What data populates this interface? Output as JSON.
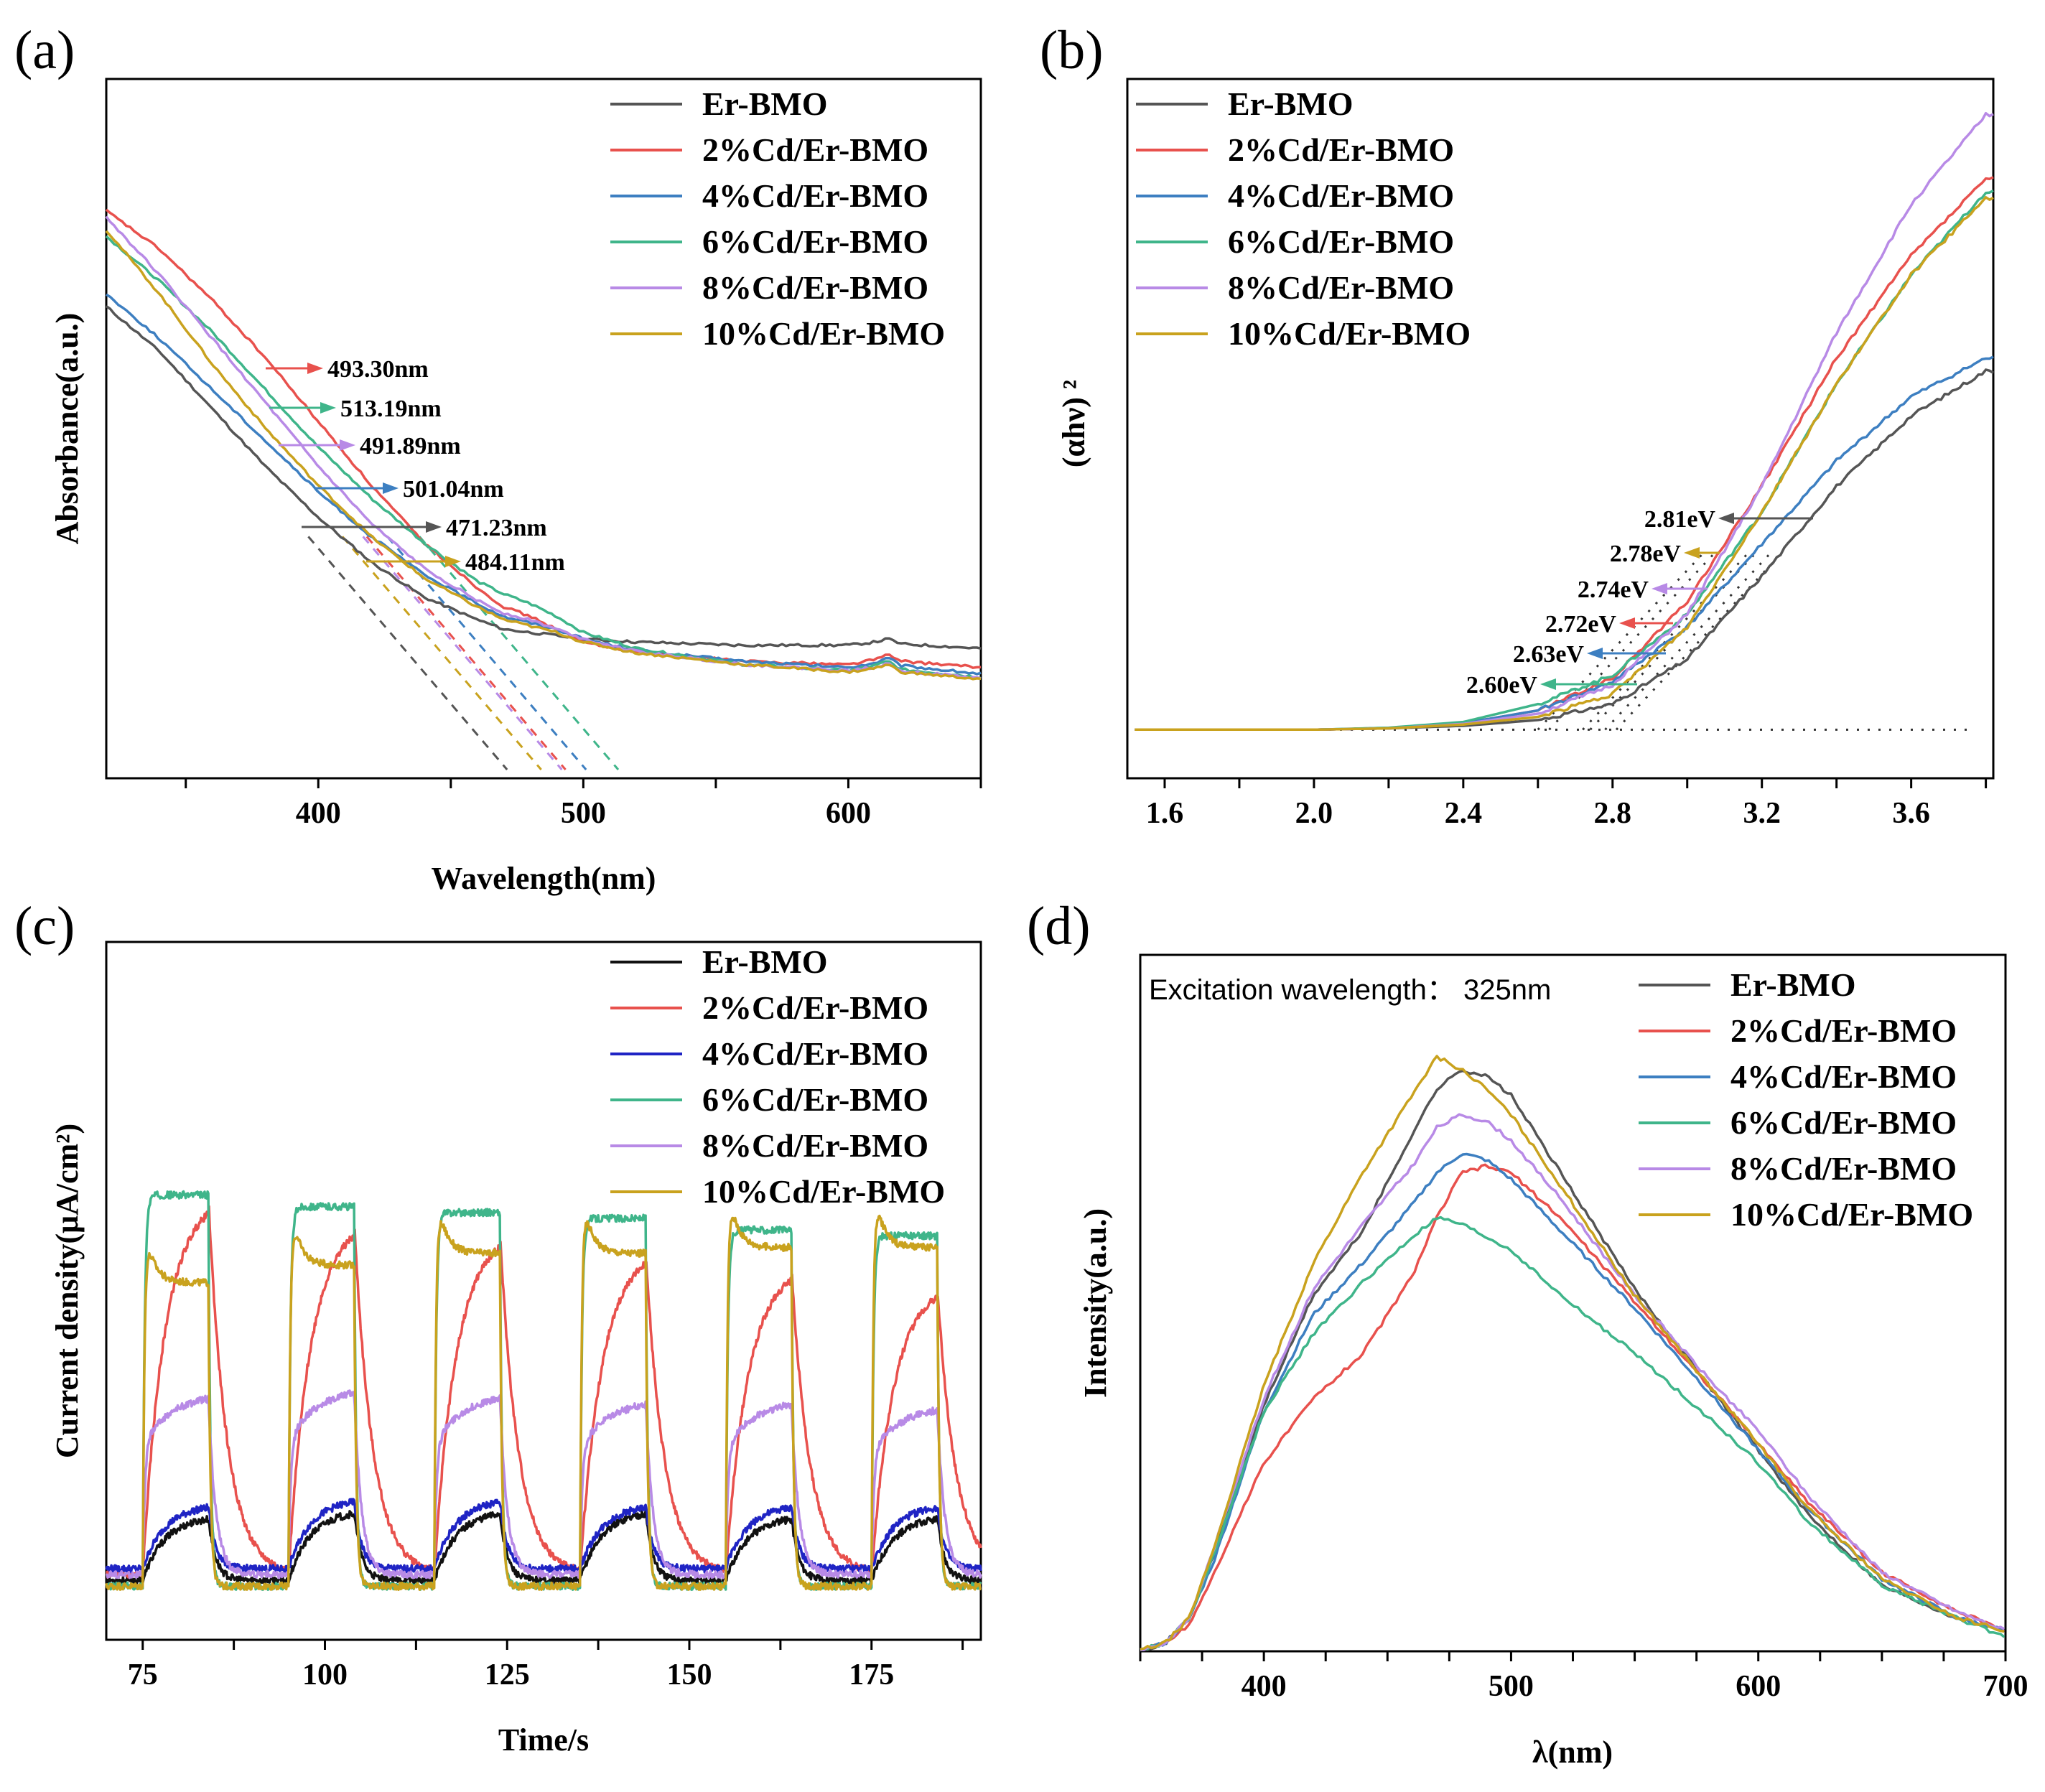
{
  "series_names": [
    "Er-BMO",
    "2%Cd/Er-BMO",
    "4%Cd/Er-BMO",
    "6%Cd/Er-BMO",
    "8%Cd/Er-BMO",
    "10%Cd/Er-BMO"
  ],
  "colors": {
    "Er-BMO_a": "#555555",
    "Er-BMO_c": "#111111",
    "2%Cd/Er-BMO": "#e8514d",
    "4%Cd/Er-BMO": "#3d7fc1",
    "4%Cd/Er-BMO_c": "#1f24c4",
    "6%Cd/Er-BMO": "#3fb58a",
    "8%Cd/Er-BMO": "#b88ae6",
    "10%Cd/Er-BMO": "#c9a21e"
  },
  "chart_data": [
    {
      "panel": "(a)",
      "type": "line",
      "xlabel": "Wavelength(nm)",
      "ylabel": "Absorbance(a.u.)",
      "xlim": [
        320,
        650
      ],
      "ylim": [
        0,
        1
      ],
      "xticks": [
        "400",
        "500",
        "600"
      ],
      "x": [
        320,
        340,
        360,
        380,
        400,
        420,
        440,
        460,
        470,
        480,
        490,
        500,
        520,
        560,
        600,
        610,
        615,
        620,
        650
      ],
      "series": [
        {
          "name": "Er-BMO",
          "values": [
            0.7,
            0.63,
            0.54,
            0.45,
            0.37,
            0.3,
            0.245,
            0.21,
            0.195,
            0.19,
            0.185,
            0.18,
            0.175,
            0.17,
            0.17,
            0.175,
            0.18,
            0.172,
            0.165
          ]
        },
        {
          "name": "2%Cd/Er-BMO",
          "values": [
            0.85,
            0.79,
            0.71,
            0.62,
            0.52,
            0.42,
            0.33,
            0.26,
            0.23,
            0.215,
            0.195,
            0.175,
            0.16,
            0.145,
            0.14,
            0.148,
            0.155,
            0.145,
            0.135
          ]
        },
        {
          "name": "4%Cd/Er-BMO",
          "values": [
            0.72,
            0.65,
            0.57,
            0.49,
            0.41,
            0.34,
            0.28,
            0.235,
            0.215,
            0.205,
            0.195,
            0.18,
            0.162,
            0.145,
            0.135,
            0.142,
            0.15,
            0.138,
            0.125
          ]
        },
        {
          "name": "6%Cd/Er-BMO",
          "values": [
            0.81,
            0.74,
            0.66,
            0.57,
            0.48,
            0.4,
            0.33,
            0.27,
            0.25,
            0.235,
            0.215,
            0.19,
            0.165,
            0.14,
            0.13,
            0.138,
            0.145,
            0.132,
            0.12
          ]
        },
        {
          "name": "8%Cd/Er-BMO",
          "values": [
            0.84,
            0.75,
            0.65,
            0.55,
            0.45,
            0.36,
            0.29,
            0.24,
            0.22,
            0.21,
            0.195,
            0.18,
            0.16,
            0.14,
            0.13,
            0.136,
            0.142,
            0.13,
            0.118
          ]
        },
        {
          "name": "10%Cd/Er-BMO",
          "values": [
            0.82,
            0.72,
            0.61,
            0.51,
            0.42,
            0.34,
            0.275,
            0.23,
            0.21,
            0.2,
            0.19,
            0.175,
            0.158,
            0.14,
            0.128,
            0.134,
            0.14,
            0.128,
            0.117
          ]
        }
      ],
      "annotations": [
        "493.30nm",
        "513.19nm",
        "491.89nm",
        "501.04nm",
        "471.23nm",
        "484.11nm"
      ],
      "annotation_series": [
        "2%Cd/Er-BMO",
        "6%Cd/Er-BMO",
        "8%Cd/Er-BMO",
        "4%Cd/Er-BMO",
        "Er-BMO",
        "10%Cd/Er-BMO"
      ],
      "edge_values": [
        493.3,
        513.19,
        491.89,
        501.04,
        471.23,
        484.11
      ],
      "legend": "top-right"
    },
    {
      "panel": "(b)",
      "type": "line",
      "xlabel": "",
      "ylabel": "(αhν) ²",
      "xlim": [
        1.5,
        3.82
      ],
      "ylim": [
        0,
        1
      ],
      "xticks": [
        "1.6",
        "2.0",
        "2.4",
        "2.8",
        "3.2",
        "3.6"
      ],
      "x": [
        1.5,
        2.0,
        2.2,
        2.4,
        2.6,
        2.8,
        3.0,
        3.2,
        3.4,
        3.6,
        3.8
      ],
      "series": [
        {
          "name": "Er-BMO",
          "values": [
            0.04,
            0.04,
            0.042,
            0.046,
            0.055,
            0.08,
            0.15,
            0.28,
            0.42,
            0.53,
            0.6
          ]
        },
        {
          "name": "2%Cd/Er-BMO",
          "values": [
            0.04,
            0.04,
            0.042,
            0.05,
            0.07,
            0.12,
            0.24,
            0.42,
            0.62,
            0.78,
            0.9
          ]
        },
        {
          "name": "4%Cd/Er-BMO",
          "values": [
            0.04,
            0.04,
            0.042,
            0.05,
            0.07,
            0.115,
            0.2,
            0.33,
            0.46,
            0.56,
            0.62
          ]
        },
        {
          "name": "6%Cd/Er-BMO",
          "values": [
            0.04,
            0.04,
            0.043,
            0.052,
            0.08,
            0.125,
            0.22,
            0.38,
            0.58,
            0.75,
            0.88
          ]
        },
        {
          "name": "8%Cd/Er-BMO",
          "values": [
            0.04,
            0.04,
            0.042,
            0.049,
            0.065,
            0.11,
            0.22,
            0.42,
            0.66,
            0.86,
            1.0
          ]
        },
        {
          "name": "10%Cd/Er-BMO",
          "values": [
            0.04,
            0.04,
            0.042,
            0.048,
            0.06,
            0.095,
            0.2,
            0.38,
            0.58,
            0.75,
            0.87
          ]
        }
      ],
      "annotations": [
        "2.81eV",
        "2.78eV",
        "2.74eV",
        "2.72eV",
        "2.63eV",
        "2.60eV"
      ],
      "annotation_series": [
        "Er-BMO",
        "10%Cd/Er-BMO",
        "8%Cd/Er-BMO",
        "2%Cd/Er-BMO",
        "4%Cd/Er-BMO",
        "6%Cd/Er-BMO"
      ],
      "band_gaps_eV": [
        2.81,
        2.78,
        2.74,
        2.72,
        2.63,
        2.6
      ],
      "legend": "top-left"
    },
    {
      "panel": "(c)",
      "type": "line",
      "xlabel": "Time/s",
      "ylabel": "Current density(μA/cm²)",
      "xlim": [
        70,
        190
      ],
      "ylim": [
        0,
        1
      ],
      "xticks": [
        "75",
        "100",
        "125",
        "150",
        "175"
      ],
      "light_on_s": [
        75,
        95,
        115,
        135,
        155,
        175
      ],
      "light_off_s": [
        84,
        104,
        124,
        144,
        164,
        184
      ],
      "series": [
        {
          "name": "Er-BMO",
          "baseline": 0.06,
          "plateaus": [
            0.17,
            0.18,
            0.18,
            0.18,
            0.17,
            0.17
          ],
          "response": "slow"
        },
        {
          "name": "2%Cd/Er-BMO",
          "baseline": 0.07,
          "plateaus": [
            0.72,
            0.68,
            0.66,
            0.63,
            0.6,
            0.57
          ],
          "response": "slow"
        },
        {
          "name": "4%Cd/Er-BMO",
          "baseline": 0.08,
          "plateaus": [
            0.19,
            0.2,
            0.2,
            0.19,
            0.19,
            0.19
          ],
          "response": "slow"
        },
        {
          "name": "6%Cd/Er-BMO",
          "baseline": 0.05,
          "plateaus": [
            0.72,
            0.7,
            0.69,
            0.68,
            0.66,
            0.65
          ],
          "response": "fast"
        },
        {
          "name": "8%Cd/Er-BMO",
          "baseline": 0.07,
          "plateaus": [
            0.38,
            0.39,
            0.38,
            0.37,
            0.37,
            0.36
          ],
          "response": "medium"
        },
        {
          "name": "10%Cd/Er-BMO",
          "baseline": 0.05,
          "plateaus": [
            0.57,
            0.6,
            0.62,
            0.62,
            0.63,
            0.63
          ],
          "response": "spike"
        }
      ],
      "legend": "top-right"
    },
    {
      "panel": "(d)",
      "type": "line",
      "xlabel": "λ(nm)",
      "ylabel": "Intensity(a.u.)",
      "xlim": [
        350,
        700
      ],
      "ylim": [
        0,
        1
      ],
      "xticks": [
        "400",
        "500",
        "600",
        "700"
      ],
      "annotation": "Excitation wavelength：  325nm",
      "x": [
        350,
        360,
        370,
        380,
        400,
        420,
        440,
        460,
        470,
        480,
        490,
        500,
        520,
        550,
        580,
        600,
        620,
        650,
        680,
        700
      ],
      "series": [
        {
          "name": "Er-BMO",
          "values": [
            0.0,
            0.01,
            0.05,
            0.15,
            0.38,
            0.55,
            0.65,
            0.8,
            0.87,
            0.9,
            0.89,
            0.86,
            0.74,
            0.56,
            0.41,
            0.31,
            0.21,
            0.1,
            0.05,
            0.03
          ]
        },
        {
          "name": "2%Cd/Er-BMO",
          "values": [
            0.0,
            0.01,
            0.04,
            0.12,
            0.29,
            0.39,
            0.46,
            0.58,
            0.67,
            0.74,
            0.75,
            0.74,
            0.67,
            0.54,
            0.41,
            0.32,
            0.23,
            0.12,
            0.06,
            0.03
          ]
        },
        {
          "name": "4%Cd/Er-BMO",
          "values": [
            0.0,
            0.01,
            0.05,
            0.14,
            0.37,
            0.52,
            0.6,
            0.69,
            0.74,
            0.77,
            0.76,
            0.73,
            0.65,
            0.53,
            0.4,
            0.31,
            0.22,
            0.11,
            0.05,
            0.03
          ]
        },
        {
          "name": "6%Cd/Er-BMO",
          "values": [
            0.0,
            0.01,
            0.05,
            0.15,
            0.37,
            0.49,
            0.57,
            0.64,
            0.67,
            0.66,
            0.64,
            0.62,
            0.55,
            0.46,
            0.36,
            0.29,
            0.2,
            0.1,
            0.05,
            0.02
          ]
        },
        {
          "name": "8%Cd/Er-BMO",
          "values": [
            0.0,
            0.01,
            0.05,
            0.16,
            0.39,
            0.56,
            0.66,
            0.75,
            0.81,
            0.83,
            0.82,
            0.79,
            0.7,
            0.55,
            0.42,
            0.34,
            0.24,
            0.12,
            0.06,
            0.03
          ]
        },
        {
          "name": "10%Cd/Er-BMO",
          "values": [
            0.0,
            0.01,
            0.05,
            0.16,
            0.41,
            0.6,
            0.74,
            0.86,
            0.92,
            0.9,
            0.87,
            0.83,
            0.72,
            0.55,
            0.41,
            0.32,
            0.22,
            0.11,
            0.05,
            0.03
          ]
        }
      ],
      "legend": "top-right"
    }
  ]
}
